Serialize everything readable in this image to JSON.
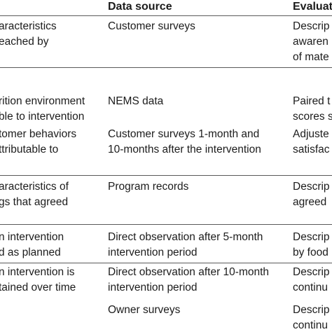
{
  "header": {
    "col2": "Data source",
    "col3": "Evaluat"
  },
  "rows": [
    {
      "c1": "aracteristics\neached by",
      "c2": "Customer surveys",
      "c3": "Descrip\nawaren\nof mate"
    },
    {
      "c1": "rition environment\nble to intervention",
      "c2": "NEMS data",
      "c3": "Paired t\nscores s"
    },
    {
      "c1": "tomer behaviors\nttributable to",
      "c2": "Customer surveys 1-month and\n10-months after the intervention",
      "c3": "Adjuste\nsatisfac"
    },
    {
      "c1": "aracteristics of\ngs that agreed",
      "c2": "Program records",
      "c3": "Descrip\nagreed"
    },
    {
      "c1": "n intervention\nd as planned",
      "c2": "Direct observation after 5-month\nintervention period",
      "c3": "Descrip\nby food"
    },
    {
      "c1": "n intervention is\ntained over time",
      "c2": "Direct observation after 10-month\nintervention period",
      "c3": "Descrip\ncontinu"
    },
    {
      "c1": "",
      "c2": "Owner surveys",
      "c3": "Descrip\ncontinu"
    }
  ]
}
